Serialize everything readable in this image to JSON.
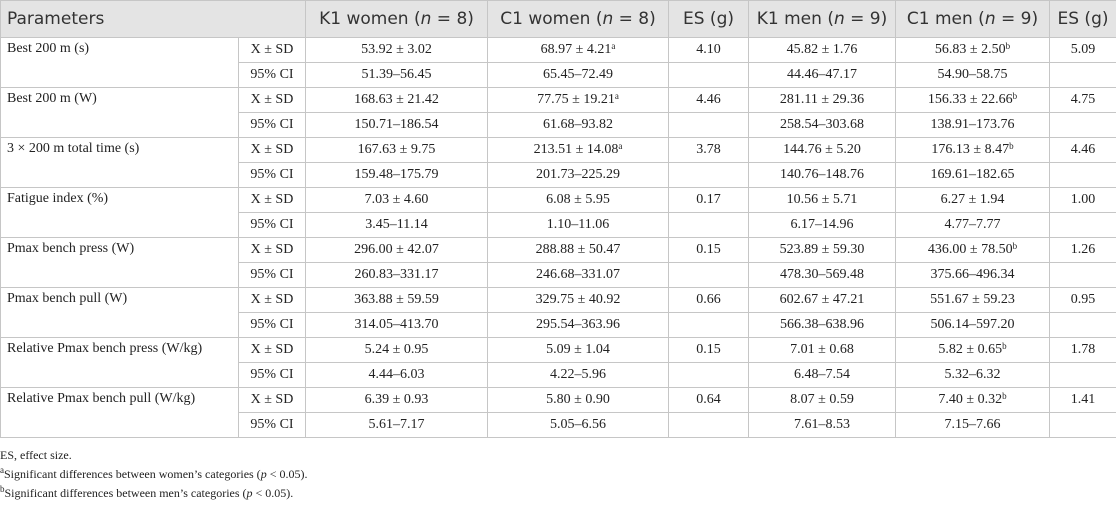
{
  "table": {
    "header": [
      "Parameters",
      [
        "K1 women (",
        "n",
        " = 8)"
      ],
      [
        "C1 women (",
        "n",
        " = 8)"
      ],
      "ES (g)",
      [
        "K1 men (",
        "n",
        " = 9)"
      ],
      [
        "C1 men (",
        "n",
        " = 9)"
      ],
      "ES (g)"
    ],
    "groups": [
      {
        "parameter": "Best 200 m (s)",
        "rows": [
          {
            "stat": "X ± SD",
            "cells": [
              "53.92 ± 3.02",
              {
                "text": "68.97 ± 4.21",
                "sup": "a"
              },
              "4.10",
              "45.82 ± 1.76",
              {
                "text": "56.83 ± 2.50",
                "sup": "b"
              },
              "5.09"
            ]
          },
          {
            "stat": "95% CI",
            "cells": [
              "51.39–56.45",
              "65.45–72.49",
              null,
              "44.46–47.17",
              "54.90–58.75",
              null
            ]
          }
        ]
      },
      {
        "parameter": "Best 200 m (W)",
        "rows": [
          {
            "stat": "X ± SD",
            "cells": [
              "168.63 ± 21.42",
              {
                "text": "77.75 ± 19.21",
                "sup": "a"
              },
              "4.46",
              "281.11 ± 29.36",
              {
                "text": "156.33 ± 22.66",
                "sup": "b"
              },
              "4.75"
            ]
          },
          {
            "stat": "95% CI",
            "cells": [
              "150.71–186.54",
              "61.68–93.82",
              null,
              "258.54–303.68",
              "138.91–173.76",
              null
            ]
          }
        ]
      },
      {
        "parameter": "3 × 200 m total time (s)",
        "rows": [
          {
            "stat": "X ± SD",
            "cells": [
              "167.63 ± 9.75",
              {
                "text": "213.51 ± 14.08",
                "sup": "a"
              },
              "3.78",
              "144.76 ± 5.20",
              {
                "text": "176.13 ± 8.47",
                "sup": "b"
              },
              "4.46"
            ]
          },
          {
            "stat": "95% CI",
            "cells": [
              "159.48–175.79",
              "201.73–225.29",
              null,
              "140.76–148.76",
              "169.61–182.65",
              null
            ]
          }
        ]
      },
      {
        "parameter": "Fatigue index (%)",
        "rows": [
          {
            "stat": "X ± SD",
            "cells": [
              "7.03 ± 4.60",
              "6.08 ± 5.95",
              "0.17",
              "10.56 ± 5.71",
              "6.27 ± 1.94",
              "1.00"
            ]
          },
          {
            "stat": "95% CI",
            "cells": [
              "3.45–11.14",
              "1.10–11.06",
              null,
              "6.17–14.96",
              "4.77–7.77",
              null
            ]
          }
        ]
      },
      {
        "parameter": "Pmax bench press (W)",
        "rows": [
          {
            "stat": "X ± SD",
            "cells": [
              "296.00 ± 42.07",
              "288.88 ± 50.47",
              "0.15",
              "523.89 ± 59.30",
              {
                "text": "436.00 ± 78.50",
                "sup": "b"
              },
              "1.26"
            ]
          },
          {
            "stat": "95% CI",
            "cells": [
              "260.83–331.17",
              "246.68–331.07",
              null,
              "478.30–569.48",
              "375.66–496.34",
              null
            ]
          }
        ]
      },
      {
        "parameter": "Pmax bench pull (W)",
        "rows": [
          {
            "stat": "X ± SD",
            "cells": [
              "363.88 ± 59.59",
              "329.75 ± 40.92",
              "0.66",
              "602.67 ± 47.21",
              "551.67 ± 59.23",
              "0.95"
            ]
          },
          {
            "stat": "95% CI",
            "cells": [
              "314.05–413.70",
              "295.54–363.96",
              null,
              "566.38–638.96",
              "506.14–597.20",
              null
            ]
          }
        ]
      },
      {
        "parameter": "Relative Pmax bench press (W/kg)",
        "rows": [
          {
            "stat": "X ± SD",
            "cells": [
              "5.24 ± 0.95",
              "5.09 ± 1.04",
              "0.15",
              "7.01 ± 0.68",
              {
                "text": "5.82 ± 0.65",
                "sup": "b"
              },
              "1.78"
            ]
          },
          {
            "stat": "95% CI",
            "cells": [
              "4.44–6.03",
              "4.22–5.96",
              null,
              "6.48–7.54",
              "5.32–6.32",
              null
            ]
          }
        ]
      },
      {
        "parameter": "Relative Pmax bench pull (W/kg)",
        "rows": [
          {
            "stat": "X ± SD",
            "cells": [
              "6.39 ± 0.93",
              "5.80 ± 0.90",
              "0.64",
              "8.07 ± 0.59",
              {
                "text": "7.40 ± 0.32",
                "sup": "b"
              },
              "1.41"
            ]
          },
          {
            "stat": "95% CI",
            "cells": [
              "5.61–7.17",
              "5.05–6.56",
              null,
              "7.61–8.53",
              "7.15–7.66",
              null
            ]
          }
        ]
      }
    ]
  },
  "notes": [
    "ES, effect size.",
    {
      "sup": "a",
      "parts": [
        "Significant differences between women’s categories (",
        "p",
        " < 0.05)."
      ]
    },
    {
      "sup": "b",
      "parts": [
        "Significant differences between men’s categories (",
        "p",
        " < 0.05)."
      ]
    }
  ]
}
